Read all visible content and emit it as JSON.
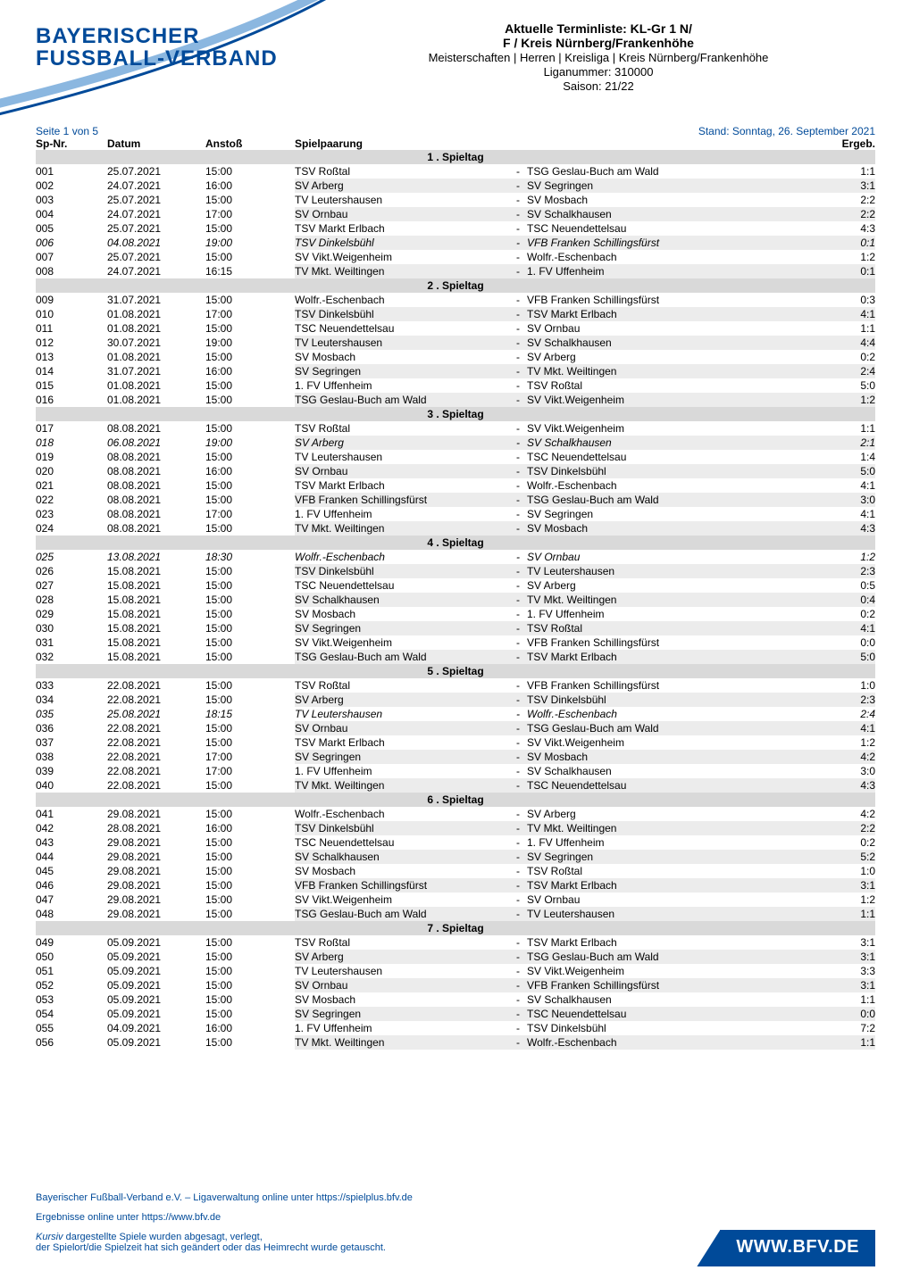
{
  "logo": {
    "line1": "BAYERISCHER",
    "line2": "FUSSBALL-VERBAND"
  },
  "header": {
    "title1": "Aktuelle Terminliste: KL-Gr 1 N/",
    "title2": "F / Kreis Nürnberg/Frankenhöhe",
    "meta1": "Meisterschaften | Herren | Kreisliga | Kreis Nürnberg/Frankenhöhe",
    "meta2": "Liganummer: 310000",
    "meta3": "Saison: 21/22"
  },
  "page_info": "Seite 1 von 5",
  "stand": "Stand: Sonntag, 26. September 2021",
  "columns": {
    "nr": "Sp-Nr.",
    "datum": "Datum",
    "anstoss": "Anstoß",
    "paarung": "Spielpaarung",
    "ergeb": "Ergeb."
  },
  "footer": {
    "line1": "Bayerischer Fußball-Verband e.V. – Ligaverwaltung online unter https://spielplus.bfv.de",
    "line2": "Ergebnisse online unter https://www.bfv.de",
    "note_italic": "Kursiv",
    "note_rest": " dargestellte Spiele wurden abgesagt, verlegt,",
    "note_line2": "der Spielort/die Spielzeit hat sich geändert oder das Heimrecht wurde getauscht.",
    "badge": "WWW.BFV.DE"
  },
  "colors": {
    "brand": "#004a99",
    "spieltag_bg": "#d9d9d9",
    "row_shade": "#ececec",
    "text": "#000000",
    "bg": "#ffffff"
  },
  "spieltage": [
    {
      "title": "1 . Spieltag",
      "matches": [
        {
          "nr": "001",
          "date": "25.07.2021",
          "time": "15:00",
          "home": "TSV Roßtal",
          "away": "TSG Geslau-Buch am Wald",
          "score": "1:1",
          "italic": false,
          "shade": false
        },
        {
          "nr": "002",
          "date": "24.07.2021",
          "time": "16:00",
          "home": "SV Arberg",
          "away": "SV Segringen",
          "score": "3:1",
          "italic": false,
          "shade": true
        },
        {
          "nr": "003",
          "date": "25.07.2021",
          "time": "15:00",
          "home": "TV Leutershausen",
          "away": "SV Mosbach",
          "score": "2:2",
          "italic": false,
          "shade": false
        },
        {
          "nr": "004",
          "date": "24.07.2021",
          "time": "17:00",
          "home": "SV Ornbau",
          "away": "SV Schalkhausen",
          "score": "2:2",
          "italic": false,
          "shade": true
        },
        {
          "nr": "005",
          "date": "25.07.2021",
          "time": "15:00",
          "home": "TSV Markt Erlbach",
          "away": "TSC Neuendettelsau",
          "score": "4:3",
          "italic": false,
          "shade": false
        },
        {
          "nr": "006",
          "date": "04.08.2021",
          "time": "19:00",
          "home": "TSV Dinkelsbühl",
          "away": "VFB Franken Schillingsfürst",
          "score": "0:1",
          "italic": true,
          "shade": true
        },
        {
          "nr": "007",
          "date": "25.07.2021",
          "time": "15:00",
          "home": "SV Vikt.Weigenheim",
          "away": "Wolfr.-Eschenbach",
          "score": "1:2",
          "italic": false,
          "shade": false
        },
        {
          "nr": "008",
          "date": "24.07.2021",
          "time": "16:15",
          "home": "TV Mkt. Weiltingen",
          "away": "1. FV Uffenheim",
          "score": "0:1",
          "italic": false,
          "shade": true
        }
      ]
    },
    {
      "title": "2 . Spieltag",
      "matches": [
        {
          "nr": "009",
          "date": "31.07.2021",
          "time": "15:00",
          "home": "Wolfr.-Eschenbach",
          "away": "VFB Franken Schillingsfürst",
          "score": "0:3",
          "italic": false,
          "shade": false
        },
        {
          "nr": "010",
          "date": "01.08.2021",
          "time": "17:00",
          "home": "TSV Dinkelsbühl",
          "away": "TSV Markt Erlbach",
          "score": "4:1",
          "italic": false,
          "shade": true
        },
        {
          "nr": "011",
          "date": "01.08.2021",
          "time": "15:00",
          "home": "TSC Neuendettelsau",
          "away": "SV Ornbau",
          "score": "1:1",
          "italic": false,
          "shade": false
        },
        {
          "nr": "012",
          "date": "30.07.2021",
          "time": "19:00",
          "home": "TV Leutershausen",
          "away": "SV Schalkhausen",
          "score": "4:4",
          "italic": false,
          "shade": true
        },
        {
          "nr": "013",
          "date": "01.08.2021",
          "time": "15:00",
          "home": "SV Mosbach",
          "away": "SV Arberg",
          "score": "0:2",
          "italic": false,
          "shade": false
        },
        {
          "nr": "014",
          "date": "31.07.2021",
          "time": "16:00",
          "home": "SV Segringen",
          "away": "TV Mkt. Weiltingen",
          "score": "2:4",
          "italic": false,
          "shade": true
        },
        {
          "nr": "015",
          "date": "01.08.2021",
          "time": "15:00",
          "home": "1. FV Uffenheim",
          "away": "TSV Roßtal",
          "score": "5:0",
          "italic": false,
          "shade": false
        },
        {
          "nr": "016",
          "date": "01.08.2021",
          "time": "15:00",
          "home": "TSG Geslau-Buch am Wald",
          "away": "SV Vikt.Weigenheim",
          "score": "1:2",
          "italic": false,
          "shade": true
        }
      ]
    },
    {
      "title": "3 . Spieltag",
      "matches": [
        {
          "nr": "017",
          "date": "08.08.2021",
          "time": "15:00",
          "home": "TSV Roßtal",
          "away": "SV Vikt.Weigenheim",
          "score": "1:1",
          "italic": false,
          "shade": false
        },
        {
          "nr": "018",
          "date": "06.08.2021",
          "time": "19:00",
          "home": "SV Arberg",
          "away": "SV Schalkhausen",
          "score": "2:1",
          "italic": true,
          "shade": true
        },
        {
          "nr": "019",
          "date": "08.08.2021",
          "time": "15:00",
          "home": "TV Leutershausen",
          "away": "TSC Neuendettelsau",
          "score": "1:4",
          "italic": false,
          "shade": false
        },
        {
          "nr": "020",
          "date": "08.08.2021",
          "time": "16:00",
          "home": "SV Ornbau",
          "away": "TSV Dinkelsbühl",
          "score": "5:0",
          "italic": false,
          "shade": true
        },
        {
          "nr": "021",
          "date": "08.08.2021",
          "time": "15:00",
          "home": "TSV Markt Erlbach",
          "away": "Wolfr.-Eschenbach",
          "score": "4:1",
          "italic": false,
          "shade": false
        },
        {
          "nr": "022",
          "date": "08.08.2021",
          "time": "15:00",
          "home": "VFB Franken Schillingsfürst",
          "away": "TSG Geslau-Buch am Wald",
          "score": "3:0",
          "italic": false,
          "shade": true
        },
        {
          "nr": "023",
          "date": "08.08.2021",
          "time": "17:00",
          "home": "1. FV Uffenheim",
          "away": "SV Segringen",
          "score": "4:1",
          "italic": false,
          "shade": false
        },
        {
          "nr": "024",
          "date": "08.08.2021",
          "time": "15:00",
          "home": "TV Mkt. Weiltingen",
          "away": "SV Mosbach",
          "score": "4:3",
          "italic": false,
          "shade": true
        }
      ]
    },
    {
      "title": "4 . Spieltag",
      "matches": [
        {
          "nr": "025",
          "date": "13.08.2021",
          "time": "18:30",
          "home": "Wolfr.-Eschenbach",
          "away": "SV Ornbau",
          "score": "1:2",
          "italic": true,
          "shade": false
        },
        {
          "nr": "026",
          "date": "15.08.2021",
          "time": "15:00",
          "home": "TSV Dinkelsbühl",
          "away": "TV Leutershausen",
          "score": "2:3",
          "italic": false,
          "shade": true
        },
        {
          "nr": "027",
          "date": "15.08.2021",
          "time": "15:00",
          "home": "TSC Neuendettelsau",
          "away": "SV Arberg",
          "score": "0:5",
          "italic": false,
          "shade": false
        },
        {
          "nr": "028",
          "date": "15.08.2021",
          "time": "15:00",
          "home": "SV Schalkhausen",
          "away": "TV Mkt. Weiltingen",
          "score": "0:4",
          "italic": false,
          "shade": true
        },
        {
          "nr": "029",
          "date": "15.08.2021",
          "time": "15:00",
          "home": "SV Mosbach",
          "away": "1. FV Uffenheim",
          "score": "0:2",
          "italic": false,
          "shade": false
        },
        {
          "nr": "030",
          "date": "15.08.2021",
          "time": "15:00",
          "home": "SV Segringen",
          "away": "TSV Roßtal",
          "score": "4:1",
          "italic": false,
          "shade": true
        },
        {
          "nr": "031",
          "date": "15.08.2021",
          "time": "15:00",
          "home": "SV Vikt.Weigenheim",
          "away": "VFB Franken Schillingsfürst",
          "score": "0:0",
          "italic": false,
          "shade": false
        },
        {
          "nr": "032",
          "date": "15.08.2021",
          "time": "15:00",
          "home": "TSG Geslau-Buch am Wald",
          "away": "TSV Markt Erlbach",
          "score": "5:0",
          "italic": false,
          "shade": true
        }
      ]
    },
    {
      "title": "5 . Spieltag",
      "matches": [
        {
          "nr": "033",
          "date": "22.08.2021",
          "time": "15:00",
          "home": "TSV Roßtal",
          "away": "VFB Franken Schillingsfürst",
          "score": "1:0",
          "italic": false,
          "shade": false
        },
        {
          "nr": "034",
          "date": "22.08.2021",
          "time": "15:00",
          "home": "SV Arberg",
          "away": "TSV Dinkelsbühl",
          "score": "2:3",
          "italic": false,
          "shade": true
        },
        {
          "nr": "035",
          "date": "25.08.2021",
          "time": "18:15",
          "home": "TV Leutershausen",
          "away": "Wolfr.-Eschenbach",
          "score": "2:4",
          "italic": true,
          "shade": false
        },
        {
          "nr": "036",
          "date": "22.08.2021",
          "time": "15:00",
          "home": "SV Ornbau",
          "away": "TSG Geslau-Buch am Wald",
          "score": "4:1",
          "italic": false,
          "shade": true
        },
        {
          "nr": "037",
          "date": "22.08.2021",
          "time": "15:00",
          "home": "TSV Markt Erlbach",
          "away": "SV Vikt.Weigenheim",
          "score": "1:2",
          "italic": false,
          "shade": false
        },
        {
          "nr": "038",
          "date": "22.08.2021",
          "time": "17:00",
          "home": "SV Segringen",
          "away": "SV Mosbach",
          "score": "4:2",
          "italic": false,
          "shade": true
        },
        {
          "nr": "039",
          "date": "22.08.2021",
          "time": "17:00",
          "home": "1. FV Uffenheim",
          "away": "SV Schalkhausen",
          "score": "3:0",
          "italic": false,
          "shade": false
        },
        {
          "nr": "040",
          "date": "22.08.2021",
          "time": "15:00",
          "home": "TV Mkt. Weiltingen",
          "away": "TSC Neuendettelsau",
          "score": "4:3",
          "italic": false,
          "shade": true
        }
      ]
    },
    {
      "title": "6 . Spieltag",
      "matches": [
        {
          "nr": "041",
          "date": "29.08.2021",
          "time": "15:00",
          "home": "Wolfr.-Eschenbach",
          "away": "SV Arberg",
          "score": "4:2",
          "italic": false,
          "shade": false
        },
        {
          "nr": "042",
          "date": "28.08.2021",
          "time": "16:00",
          "home": "TSV Dinkelsbühl",
          "away": "TV Mkt. Weiltingen",
          "score": "2:2",
          "italic": false,
          "shade": true
        },
        {
          "nr": "043",
          "date": "29.08.2021",
          "time": "15:00",
          "home": "TSC Neuendettelsau",
          "away": "1. FV Uffenheim",
          "score": "0:2",
          "italic": false,
          "shade": false
        },
        {
          "nr": "044",
          "date": "29.08.2021",
          "time": "15:00",
          "home": "SV Schalkhausen",
          "away": "SV Segringen",
          "score": "5:2",
          "italic": false,
          "shade": true
        },
        {
          "nr": "045",
          "date": "29.08.2021",
          "time": "15:00",
          "home": "SV Mosbach",
          "away": "TSV Roßtal",
          "score": "1:0",
          "italic": false,
          "shade": false
        },
        {
          "nr": "046",
          "date": "29.08.2021",
          "time": "15:00",
          "home": "VFB Franken Schillingsfürst",
          "away": "TSV Markt Erlbach",
          "score": "3:1",
          "italic": false,
          "shade": true
        },
        {
          "nr": "047",
          "date": "29.08.2021",
          "time": "15:00",
          "home": "SV Vikt.Weigenheim",
          "away": "SV Ornbau",
          "score": "1:2",
          "italic": false,
          "shade": false
        },
        {
          "nr": "048",
          "date": "29.08.2021",
          "time": "15:00",
          "home": "TSG Geslau-Buch am Wald",
          "away": "TV Leutershausen",
          "score": "1:1",
          "italic": false,
          "shade": true
        }
      ]
    },
    {
      "title": "7 . Spieltag",
      "matches": [
        {
          "nr": "049",
          "date": "05.09.2021",
          "time": "15:00",
          "home": "TSV Roßtal",
          "away": "TSV Markt Erlbach",
          "score": "3:1",
          "italic": false,
          "shade": false
        },
        {
          "nr": "050",
          "date": "05.09.2021",
          "time": "15:00",
          "home": "SV Arberg",
          "away": "TSG Geslau-Buch am Wald",
          "score": "3:1",
          "italic": false,
          "shade": true
        },
        {
          "nr": "051",
          "date": "05.09.2021",
          "time": "15:00",
          "home": "TV Leutershausen",
          "away": "SV Vikt.Weigenheim",
          "score": "3:3",
          "italic": false,
          "shade": false
        },
        {
          "nr": "052",
          "date": "05.09.2021",
          "time": "15:00",
          "home": "SV Ornbau",
          "away": "VFB Franken Schillingsfürst",
          "score": "3:1",
          "italic": false,
          "shade": true
        },
        {
          "nr": "053",
          "date": "05.09.2021",
          "time": "15:00",
          "home": "SV Mosbach",
          "away": "SV Schalkhausen",
          "score": "1:1",
          "italic": false,
          "shade": false
        },
        {
          "nr": "054",
          "date": "05.09.2021",
          "time": "15:00",
          "home": "SV Segringen",
          "away": "TSC Neuendettelsau",
          "score": "0:0",
          "italic": false,
          "shade": true
        },
        {
          "nr": "055",
          "date": "04.09.2021",
          "time": "16:00",
          "home": "1. FV Uffenheim",
          "away": "TSV Dinkelsbühl",
          "score": "7:2",
          "italic": false,
          "shade": false
        },
        {
          "nr": "056",
          "date": "05.09.2021",
          "time": "15:00",
          "home": "TV Mkt. Weiltingen",
          "away": "Wolfr.-Eschenbach",
          "score": "1:1",
          "italic": false,
          "shade": true
        }
      ]
    }
  ]
}
